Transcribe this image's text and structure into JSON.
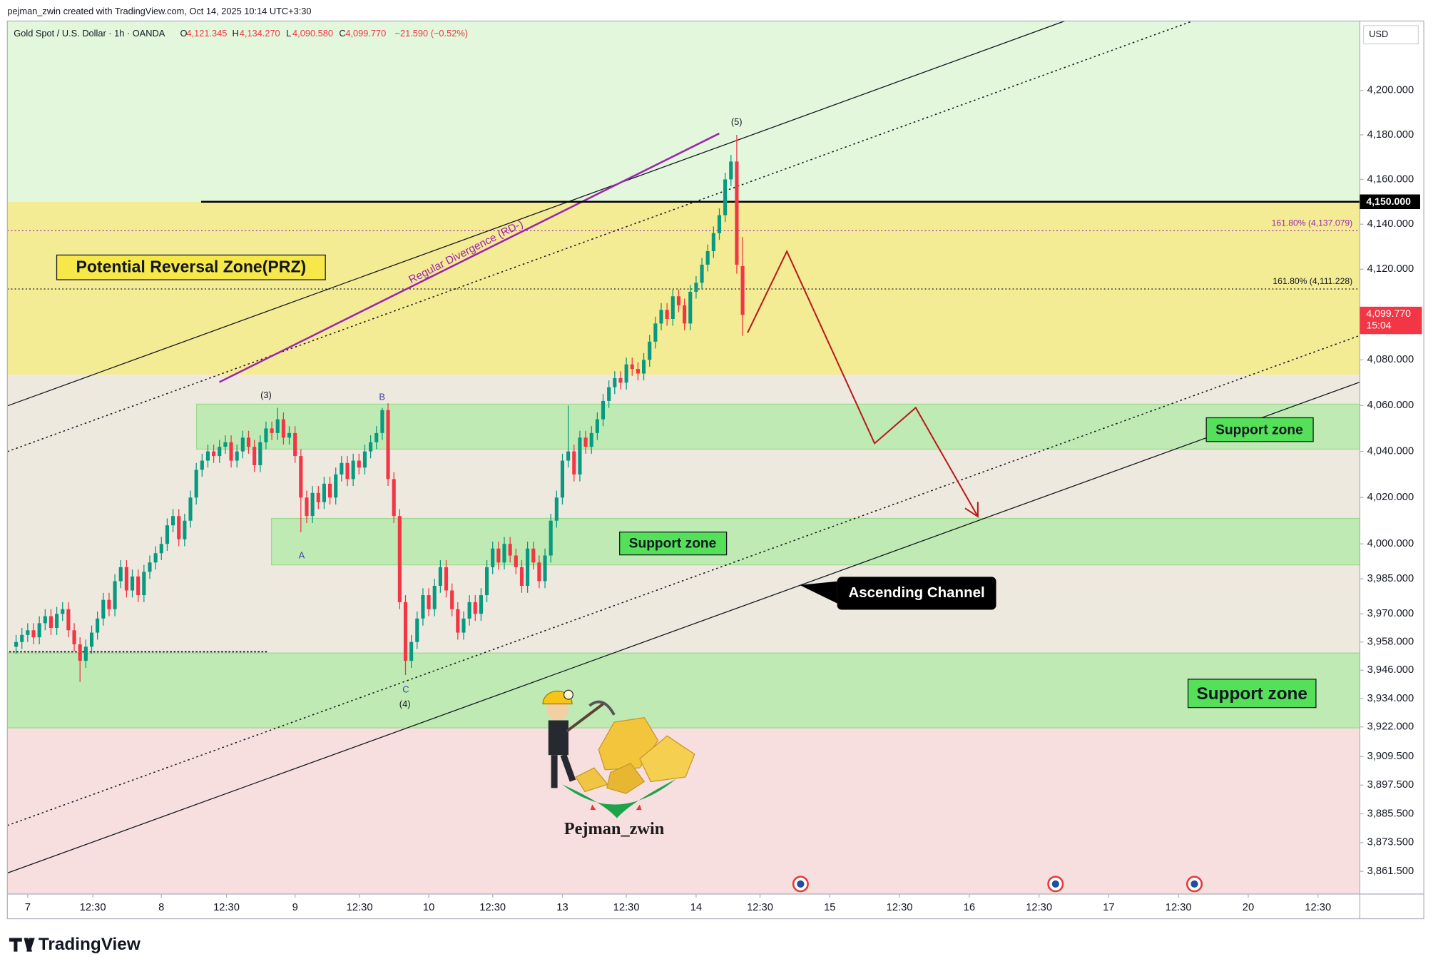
{
  "header": {
    "attribution": "pejman_zwin created with TradingView.com, Oct 14, 2025 10:14 UTC+3:30",
    "currency": "USD"
  },
  "footer": {
    "brand": "TradingView"
  },
  "chart_data": {
    "type": "candlestick",
    "title": "Gold Spot / U.S. Dollar · 1h · OANDA",
    "ohlc_legend": [
      {
        "key": "O",
        "text": "4,121.345"
      },
      {
        "key": "H",
        "text": "4,134.270"
      },
      {
        "key": "L",
        "text": "4,090.580"
      },
      {
        "key": "C",
        "text": "4,099.770"
      }
    ],
    "change": "−21.590 (−0.52%)",
    "log_scale": true,
    "up_color": "#089981",
    "down_color": "#f23645",
    "x": [
      -2,
      -1,
      0,
      1,
      2,
      3,
      4,
      5,
      6,
      7,
      8,
      9,
      10,
      11,
      12,
      13,
      14,
      15,
      16,
      17,
      18,
      19,
      20,
      21,
      22,
      23,
      24,
      25,
      26,
      27,
      28,
      29,
      30,
      31,
      32,
      33,
      34,
      35,
      36,
      37,
      38,
      39,
      40,
      41,
      42,
      43,
      44,
      45,
      46,
      47,
      48,
      49,
      50,
      51,
      52,
      53,
      54,
      55,
      56,
      57,
      58,
      59,
      60,
      61,
      62,
      63,
      64,
      65,
      66,
      67,
      68,
      69,
      70,
      71,
      72,
      73,
      74,
      75,
      76,
      77,
      78,
      79,
      80,
      81,
      82,
      83,
      84,
      85,
      86,
      87,
      88,
      89,
      90,
      91,
      92,
      93,
      94,
      95,
      96,
      97,
      98,
      99,
      100,
      101,
      102,
      103,
      104,
      105,
      106,
      107,
      108,
      109,
      110,
      111,
      112,
      113,
      114,
      115,
      116,
      117,
      118,
      119,
      120,
      121,
      122,
      123
    ],
    "candles": [
      [
        3956,
        3961,
        3953,
        3958
      ],
      [
        3958,
        3964,
        3955,
        3961
      ],
      [
        3961,
        3966,
        3958,
        3963
      ],
      [
        3963,
        3966,
        3957,
        3960
      ],
      [
        3960,
        3969,
        3957,
        3966
      ],
      [
        3966,
        3972,
        3963,
        3969
      ],
      [
        3969,
        3972,
        3961,
        3964
      ],
      [
        3964,
        3973,
        3961,
        3970
      ],
      [
        3970,
        3975,
        3967,
        3972
      ],
      [
        3972,
        3975,
        3960,
        3963
      ],
      [
        3963,
        3966,
        3954,
        3957
      ],
      [
        3957,
        3960,
        3941,
        3950
      ],
      [
        3950,
        3959,
        3947,
        3956
      ],
      [
        3956,
        3965,
        3953,
        3962
      ],
      [
        3962,
        3971,
        3959,
        3968
      ],
      [
        3968,
        3979,
        3965,
        3976
      ],
      [
        3976,
        3979,
        3969,
        3972
      ],
      [
        3972,
        3987,
        3969,
        3984
      ],
      [
        3984,
        3993,
        3981,
        3990
      ],
      [
        3990,
        3993,
        3977,
        3980
      ],
      [
        3980,
        3989,
        3977,
        3986
      ],
      [
        3986,
        3989,
        3975,
        3978
      ],
      [
        3978,
        3991,
        3975,
        3988
      ],
      [
        3988,
        3995,
        3985,
        3992
      ],
      [
        3992,
        3999,
        3989,
        3996
      ],
      [
        3996,
        4003,
        3993,
        4000
      ],
      [
        4000,
        4011,
        3997,
        4008
      ],
      [
        4008,
        4015,
        4005,
        4012
      ],
      [
        4012,
        4015,
        3999,
        4002
      ],
      [
        4002,
        4013,
        3999,
        4010
      ],
      [
        4010,
        4023,
        4007,
        4020
      ],
      [
        4020,
        4035,
        4017,
        4032
      ],
      [
        4032,
        4039,
        4029,
        4036
      ],
      [
        4036,
        4043,
        4033,
        4040
      ],
      [
        4040,
        4043,
        4035,
        4038
      ],
      [
        4038,
        4045,
        4035,
        4042
      ],
      [
        4042,
        4047,
        4039,
        4044
      ],
      [
        4044,
        4047,
        4033,
        4036
      ],
      [
        4036,
        4043,
        4033,
        4040
      ],
      [
        4040,
        4049,
        4037,
        4046
      ],
      [
        4046,
        4049,
        4039,
        4042
      ],
      [
        4042,
        4045,
        4031,
        4034
      ],
      [
        4034,
        4047,
        4031,
        4044
      ],
      [
        4044,
        4053,
        4041,
        4050
      ],
      [
        4050,
        4053,
        4045,
        4048
      ],
      [
        4048,
        4059,
        4045,
        4054
      ],
      [
        4054,
        4057,
        4043,
        4046
      ],
      [
        4046,
        4051,
        4043,
        4048
      ],
      [
        4048,
        4051,
        4035,
        4038
      ],
      [
        4038,
        4041,
        4005,
        4020
      ],
      [
        4020,
        4023,
        4009,
        4012
      ],
      [
        4012,
        4025,
        4009,
        4022
      ],
      [
        4022,
        4025,
        4015,
        4018
      ],
      [
        4018,
        4029,
        4015,
        4026
      ],
      [
        4026,
        4029,
        4017,
        4020
      ],
      [
        4020,
        4033,
        4017,
        4030
      ],
      [
        4030,
        4038,
        4027,
        4035
      ],
      [
        4035,
        4038,
        4025,
        4028
      ],
      [
        4028,
        4039,
        4025,
        4036
      ],
      [
        4036,
        4039,
        4030,
        4033
      ],
      [
        4033,
        4043,
        4030,
        4040
      ],
      [
        4040,
        4047,
        4037,
        4044
      ],
      [
        4044,
        4051,
        4041,
        4048
      ],
      [
        4048,
        4059,
        4045,
        4058
      ],
      [
        4058,
        4061,
        4025,
        4028
      ],
      [
        4028,
        4031,
        4009,
        4012
      ],
      [
        4012,
        4015,
        3972,
        3975
      ],
      [
        3975,
        3978,
        3944,
        3950
      ],
      [
        3950,
        3961,
        3947,
        3958
      ],
      [
        3958,
        3971,
        3955,
        3968
      ],
      [
        3968,
        3981,
        3965,
        3978
      ],
      [
        3978,
        3981,
        3969,
        3972
      ],
      [
        3972,
        3985,
        3969,
        3982
      ],
      [
        3982,
        3993,
        3979,
        3990
      ],
      [
        3990,
        3993,
        3977,
        3980
      ],
      [
        3980,
        3983,
        3969,
        3972
      ],
      [
        3972,
        3975,
        3959,
        3962
      ],
      [
        3962,
        3971,
        3959,
        3968
      ],
      [
        3968,
        3978,
        3965,
        3975
      ],
      [
        3975,
        3978,
        3967,
        3970
      ],
      [
        3970,
        3981,
        3967,
        3978
      ],
      [
        3978,
        3993,
        3975,
        3990
      ],
      [
        3990,
        4001,
        3987,
        3998
      ],
      [
        3998,
        4001,
        3989,
        3992
      ],
      [
        3992,
        4003,
        3989,
        4000
      ],
      [
        4000,
        4003,
        3992,
        3995
      ],
      [
        3995,
        3998,
        3987,
        3990
      ],
      [
        3990,
        3993,
        3979,
        3982
      ],
      [
        3982,
        4001,
        3979,
        3998
      ],
      [
        3998,
        4001,
        3989,
        3992
      ],
      [
        3992,
        3995,
        3981,
        3984
      ],
      [
        3984,
        3998,
        3981,
        3995
      ],
      [
        3995,
        4013,
        3992,
        4010
      ],
      [
        4010,
        4023,
        4007,
        4020
      ],
      [
        4020,
        4039,
        4017,
        4036
      ],
      [
        4036,
        4060,
        4033,
        4040
      ],
      [
        4040,
        4043,
        4027,
        4030
      ],
      [
        4030,
        4049,
        4027,
        4046
      ],
      [
        4046,
        4049,
        4039,
        4042
      ],
      [
        4042,
        4051,
        4039,
        4048
      ],
      [
        4048,
        4057,
        4045,
        4054
      ],
      [
        4054,
        4065,
        4051,
        4062
      ],
      [
        4062,
        4071,
        4059,
        4068
      ],
      [
        4068,
        4075,
        4065,
        4072
      ],
      [
        4072,
        4075,
        4067,
        4070
      ],
      [
        4070,
        4081,
        4067,
        4078
      ],
      [
        4078,
        4081,
        4073,
        4076
      ],
      [
        4076,
        4079,
        4071,
        4074
      ],
      [
        4074,
        4083,
        4071,
        4080
      ],
      [
        4080,
        4091,
        4077,
        4088
      ],
      [
        4088,
        4099,
        4085,
        4096
      ],
      [
        4096,
        4105,
        4093,
        4102
      ],
      [
        4102,
        4105,
        4095,
        4098
      ],
      [
        4098,
        4111,
        4095,
        4108
      ],
      [
        4108,
        4111,
        4101,
        4104
      ],
      [
        4104,
        4107,
        4093,
        4096
      ],
      [
        4096,
        4113,
        4093,
        4110
      ],
      [
        4110,
        4117,
        4107,
        4114
      ],
      [
        4114,
        4125,
        4111,
        4122
      ],
      [
        4122,
        4131,
        4119,
        4128
      ],
      [
        4128,
        4139,
        4125,
        4136
      ],
      [
        4136,
        4147,
        4133,
        4144
      ],
      [
        4144,
        4163,
        4141,
        4160
      ],
      [
        4160,
        4171,
        4157,
        4168
      ],
      [
        4168,
        4180,
        4118,
        4122
      ],
      [
        4121.345,
        4134.27,
        4090.58,
        4099.77
      ]
    ],
    "xlim": [
      -3.5,
      229.2
    ],
    "xticks": [
      {
        "value": 0,
        "label": "7"
      },
      {
        "value": 11.2,
        "label": "12:30"
      },
      {
        "value": 23,
        "label": "8"
      },
      {
        "value": 34.2,
        "label": "12:30"
      },
      {
        "value": 46,
        "label": "9"
      },
      {
        "value": 57.1,
        "label": "12:30"
      },
      {
        "value": 69,
        "label": "10"
      },
      {
        "value": 80,
        "label": "12:30"
      },
      {
        "value": 92,
        "label": "13"
      },
      {
        "value": 103,
        "label": "12:30"
      },
      {
        "value": 115,
        "label": "14"
      },
      {
        "value": 126,
        "label": "12:30"
      },
      {
        "value": 138,
        "label": "15"
      },
      {
        "value": 150,
        "label": "12:30"
      },
      {
        "value": 162,
        "label": "16"
      },
      {
        "value": 174,
        "label": "12:30"
      },
      {
        "value": 186,
        "label": "17"
      },
      {
        "value": 198,
        "label": "12:30"
      },
      {
        "value": 210,
        "label": "20"
      },
      {
        "value": 222,
        "label": "12:30"
      }
    ],
    "ylim": [
      3852.1,
      4231.5
    ],
    "yticks": [
      {
        "value": 4200,
        "label": "4,200.000"
      },
      {
        "value": 4180,
        "label": "4,180.000"
      },
      {
        "value": 4160,
        "label": "4,160.000"
      },
      {
        "value": 4140,
        "label": "4,140.000"
      },
      {
        "value": 4120,
        "label": "4,120.000"
      },
      {
        "value": 4080,
        "label": "4,080.000"
      },
      {
        "value": 4060,
        "label": "4,060.000"
      },
      {
        "value": 4040,
        "label": "4,040.000"
      },
      {
        "value": 4020,
        "label": "4,020.000"
      },
      {
        "value": 4000,
        "label": "4,000.000"
      },
      {
        "value": 3985,
        "label": "3,985.000"
      },
      {
        "value": 3970,
        "label": "3,970.000"
      },
      {
        "value": 3958,
        "label": "3,958.000"
      },
      {
        "value": 3946,
        "label": "3,946.000"
      },
      {
        "value": 3934,
        "label": "3,934.000"
      },
      {
        "value": 3922,
        "label": "3,922.000"
      },
      {
        "value": 3909.5,
        "label": "3,909.500"
      },
      {
        "value": 3897.5,
        "label": "3,897.500"
      },
      {
        "value": 3885.5,
        "label": "3,885.500"
      },
      {
        "value": 3873.5,
        "label": "3,873.500"
      },
      {
        "value": 3861.5,
        "label": "3,861.500"
      }
    ],
    "levels": [
      {
        "value": 4150,
        "label": "4,150.000"
      }
    ],
    "fib_levels": [
      {
        "value": 4137.079,
        "label": "161.80% (4,137.079)",
        "color": "#9c27b0"
      },
      {
        "value": 4111.228,
        "label": "161.80% (4,111.228)",
        "color": "#131722"
      }
    ],
    "last_price": {
      "value": 4099.77,
      "label": "4,099.770",
      "countdown": "15:04"
    },
    "zones": [
      {
        "name": "Potential Reversal Zone(PRZ)",
        "range": [
          4073.5,
          4150
        ],
        "color": "#f4eb95"
      },
      {
        "name": "Support zone",
        "range": [
          4041,
          4060.6
        ],
        "color": "#bfeab3"
      },
      {
        "name": "Support zone",
        "range": [
          3991,
          4011
        ],
        "color": "#bfeab3"
      },
      {
        "name": "Support zone",
        "range": [
          3921.6,
          3953.3
        ],
        "color": "#bfeab3"
      }
    ],
    "annotations": {
      "waves": [
        "(5)",
        "(3)",
        "B",
        "A",
        "C",
        "(4)"
      ],
      "divergence": "Regular Divergence (RD-)",
      "channel": "Ascending Channel",
      "author": "Pejman_zwin"
    }
  }
}
